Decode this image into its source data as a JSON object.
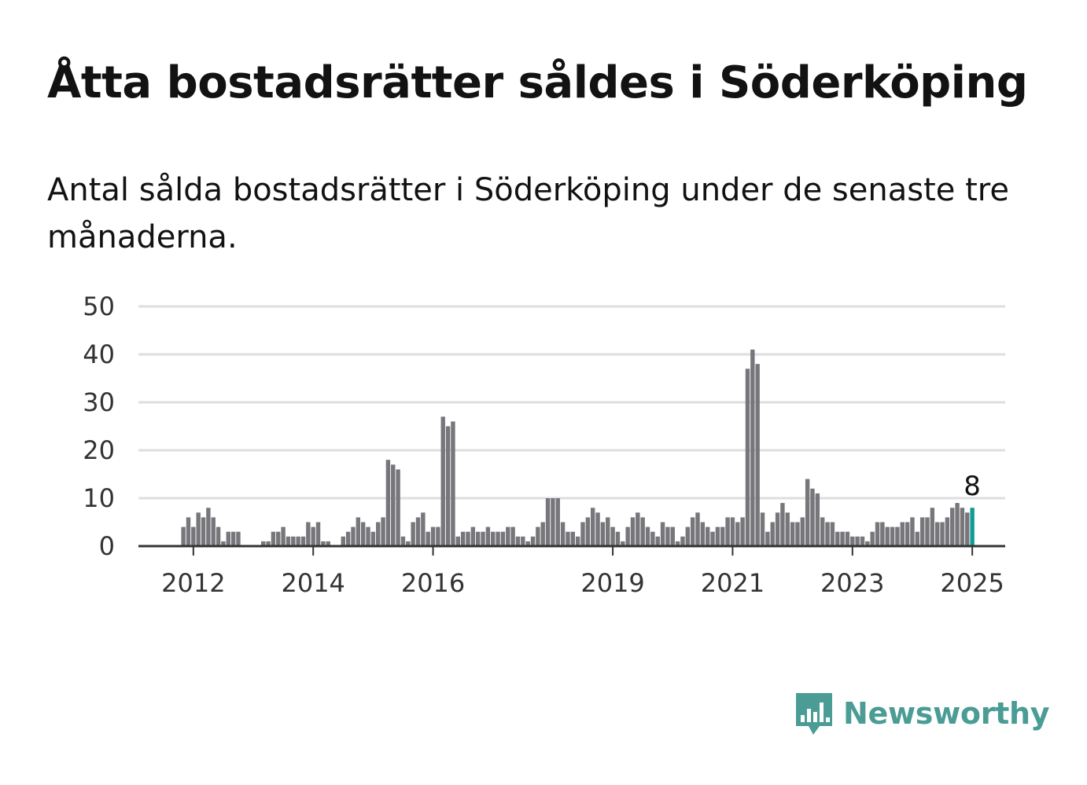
{
  "title": "Åtta bostadsrätter såldes i Söderköping",
  "subtitle": "Antal sålda bostadsrätter i Söderköping under de senaste tre månaderna.",
  "brand": {
    "name": "Newsworthy",
    "icon": "newsworthy-logo-icon",
    "color": "#4a9c95"
  },
  "chart_data": {
    "type": "bar",
    "x_start": "2011-10",
    "frequency": "monthly",
    "values": [
      0,
      4,
      6,
      4,
      7,
      6,
      8,
      6,
      4,
      1,
      3,
      3,
      3,
      0,
      0,
      0,
      0,
      1,
      1,
      3,
      3,
      4,
      2,
      2,
      2,
      2,
      5,
      4,
      5,
      1,
      1,
      0,
      0,
      2,
      3,
      4,
      6,
      5,
      4,
      3,
      5,
      6,
      18,
      17,
      16,
      2,
      1,
      5,
      6,
      7,
      3,
      4,
      4,
      27,
      25,
      26,
      2,
      3,
      3,
      4,
      3,
      3,
      4,
      3,
      3,
      3,
      4,
      4,
      2,
      2,
      1,
      2,
      4,
      5,
      10,
      10,
      10,
      5,
      3,
      3,
      2,
      5,
      6,
      8,
      7,
      5,
      6,
      4,
      3,
      1,
      4,
      6,
      7,
      6,
      4,
      3,
      2,
      5,
      4,
      4,
      1,
      2,
      4,
      6,
      7,
      5,
      4,
      3,
      4,
      4,
      6,
      6,
      5,
      6,
      37,
      41,
      38,
      7,
      3,
      5,
      7,
      9,
      7,
      5,
      5,
      6,
      14,
      12,
      11,
      6,
      5,
      5,
      3,
      3,
      3,
      2,
      2,
      2,
      1,
      3,
      5,
      5,
      4,
      4,
      4,
      5,
      5,
      6,
      3,
      6,
      6,
      8,
      5,
      5,
      6,
      8,
      9,
      8,
      7,
      8
    ],
    "highlight_last": true,
    "highlight_label": "8",
    "x_ticks": [
      {
        "label": "2012",
        "index": 3
      },
      {
        "label": "2014",
        "index": 27
      },
      {
        "label": "2016",
        "index": 51
      },
      {
        "label": "2019",
        "index": 87
      },
      {
        "label": "2021",
        "index": 111
      },
      {
        "label": "2023",
        "index": 135
      },
      {
        "label": "2025",
        "index": 159
      }
    ],
    "y_ticks": [
      0,
      10,
      20,
      30,
      40,
      50
    ],
    "ylim": [
      0,
      50
    ],
    "grid": true,
    "colors": {
      "bar": "#76767b",
      "highlight": "#0f9c94",
      "grid": "#dedede",
      "axis": "#333333"
    }
  }
}
